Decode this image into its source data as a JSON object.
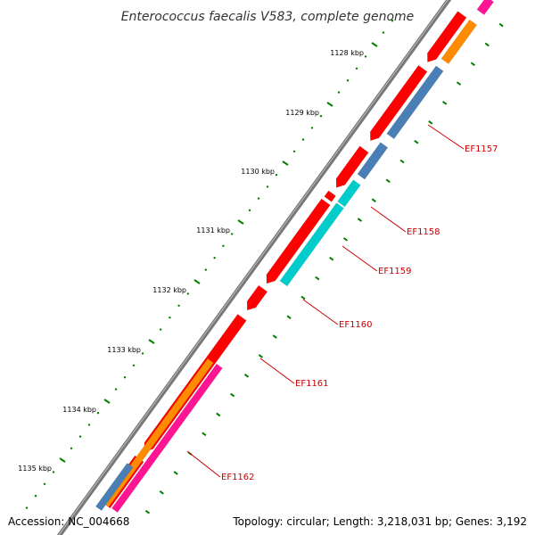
{
  "title": "Enterococcus faecalis V583, complete genome",
  "footer": {
    "accession": "Accession: NC_004668",
    "topology": "Topology: circular; Length: 3,218,031 bp; Genes: 3,192"
  },
  "colors": {
    "backbone": "#888888",
    "red_feature": "#ff0000",
    "orange_feature": "#ff8c00",
    "blue_feature": "#4a7fb5",
    "cyan_feature": "#00cccc",
    "pink_feature": "#ff1493",
    "tick": "#008000",
    "label_line": "#cc0000"
  },
  "ticks": [
    {
      "label": "1128 kbp"
    },
    {
      "label": "1129 kbp"
    },
    {
      "label": "1130 kbp"
    },
    {
      "label": "1131 kbp"
    },
    {
      "label": "1132 kbp"
    },
    {
      "label": "1133 kbp"
    },
    {
      "label": "1134 kbp"
    },
    {
      "label": "1135 kbp"
    }
  ],
  "genes": [
    {
      "label": "EF1157"
    },
    {
      "label": "EF1158"
    },
    {
      "label": "EF1159"
    },
    {
      "label": "EF1160"
    },
    {
      "label": "EF1161"
    },
    {
      "label": "EF1162"
    }
  ]
}
